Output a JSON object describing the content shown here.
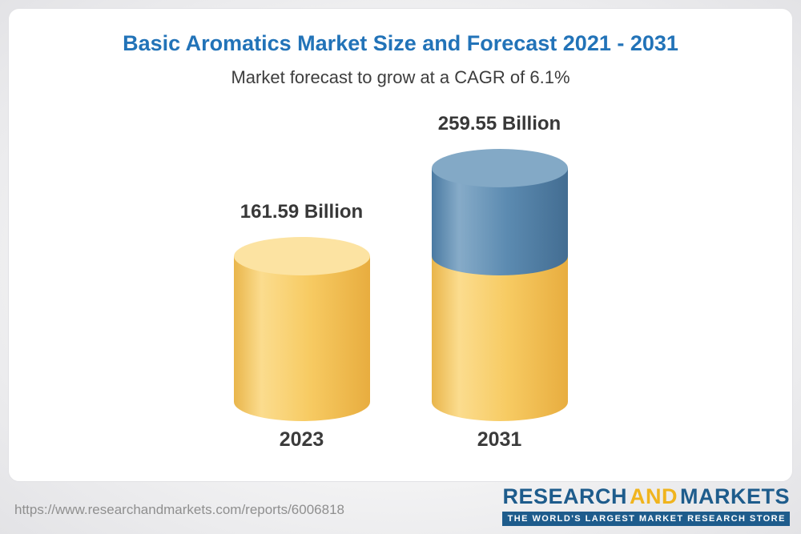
{
  "page": {
    "title": "Basic Aromatics Market Size and Forecast 2021 - 2031",
    "subtitle": "Market forecast to grow at a CAGR of 6.1%"
  },
  "footer": {
    "url": "https://www.researchandmarkets.com/reports/6006818",
    "logo": {
      "part1": "RESEARCH",
      "part2": "AND",
      "part3": "MARKETS",
      "tagline": "THE WORLD'S LARGEST MARKET RESEARCH STORE",
      "blue": "#1e5c8c",
      "gold": "#f0b41e"
    }
  },
  "chart_data": {
    "type": "bar",
    "variant": "3d-cylinder",
    "title": "Basic Aromatics Market Size and Forecast 2021 - 2031",
    "subtitle": "Market forecast to grow at a CAGR of 6.1%",
    "unit": "Billion",
    "cagr_percent": 6.1,
    "categories": [
      "2023",
      "2031"
    ],
    "values": [
      161.59,
      259.55
    ],
    "value_labels": [
      "161.59 Billion",
      "259.55 Billion"
    ],
    "legend": "none",
    "axes": "none",
    "bars": [
      {
        "category": "2023",
        "label": "161.59 Billion",
        "segments": [
          {
            "value": 161.59,
            "color_key": "gold"
          }
        ]
      },
      {
        "category": "2031",
        "label": "259.55 Billion",
        "segments": [
          {
            "value": 161.59,
            "color_key": "gold"
          },
          {
            "value": 97.96,
            "color_key": "blue"
          }
        ]
      }
    ],
    "colors": {
      "gold_body": [
        "#e9b54a",
        "#fbdc8e",
        "#f7cb63",
        "#e8ad3f"
      ],
      "gold_top": "#fce3a2",
      "blue_body": [
        "#4a7aa2",
        "#86abc8",
        "#5c8bb1",
        "#436d92"
      ],
      "blue_top": "#83a9c6"
    }
  }
}
